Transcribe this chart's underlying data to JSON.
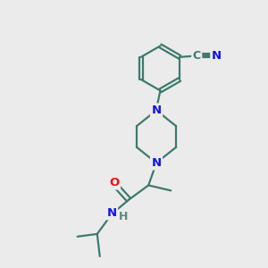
{
  "bg_color": "#ebebeb",
  "bond_color": "#3d7a6e",
  "N_color": "#1010ee",
  "O_color": "#ee1010",
  "H_color": "#5a8a80",
  "line_width": 1.6,
  "font_size": 9.5,
  "figsize": [
    3.0,
    3.0
  ],
  "dpi": 100,
  "xlim": [
    0,
    10
  ],
  "ylim": [
    0,
    10
  ]
}
